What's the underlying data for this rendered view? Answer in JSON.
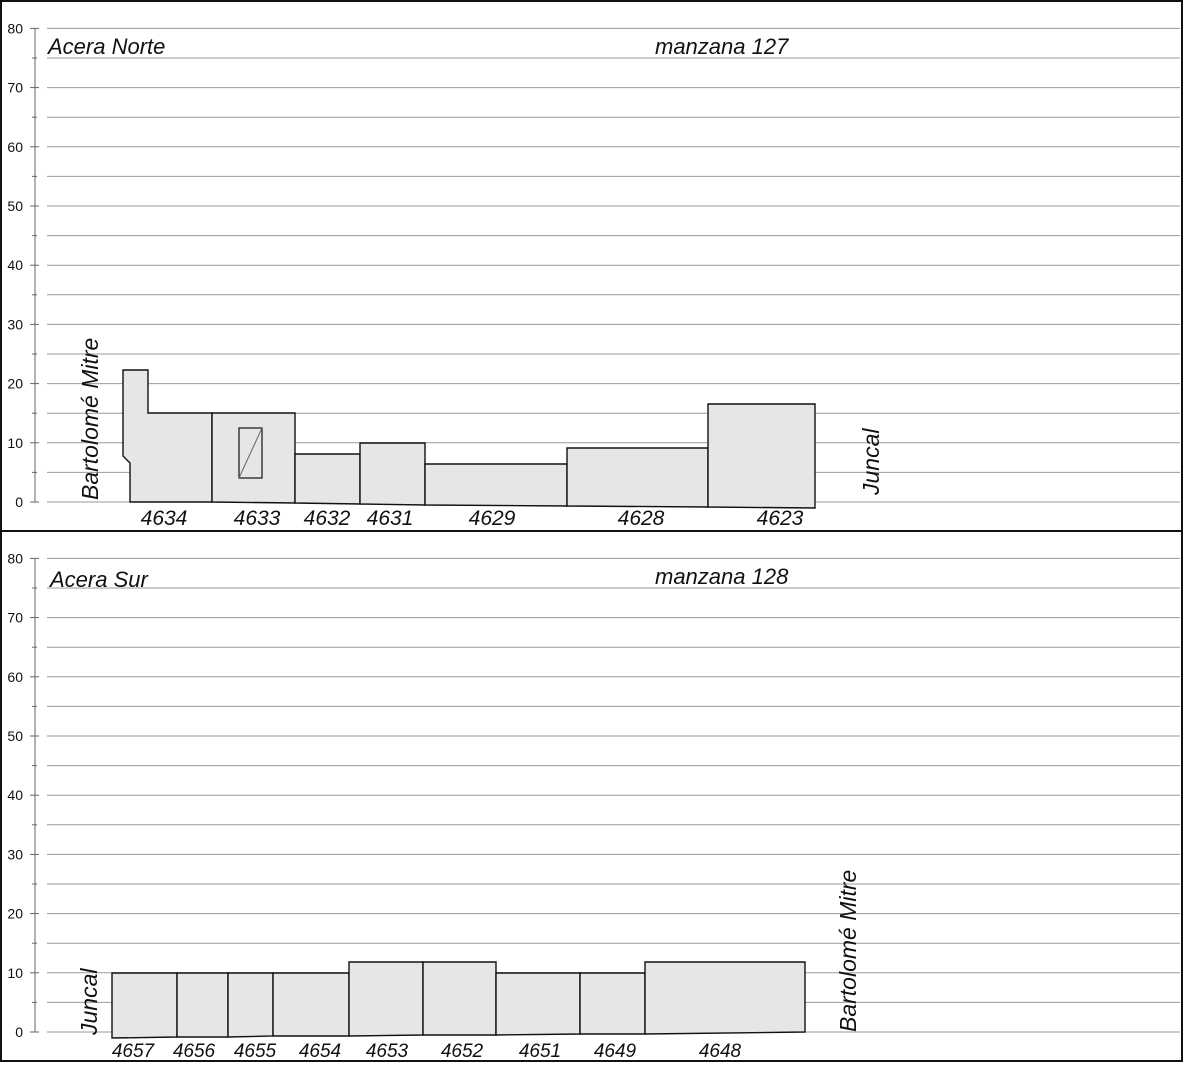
{
  "panels": [
    {
      "id": "north",
      "title": "Acera Norte",
      "block": "manzana 127",
      "left_street": "Bartolomé Mitre",
      "right_street": "Juncal",
      "y_ticks": [
        "0",
        "10",
        "20",
        "30",
        "40",
        "50",
        "60",
        "70",
        "80"
      ],
      "lots": [
        {
          "label": "4634",
          "height": 15
        },
        {
          "label": "4633",
          "height": 15
        },
        {
          "label": "4632",
          "height": 8
        },
        {
          "label": "4631",
          "height": 10
        },
        {
          "label": "4629",
          "height": 6.5
        },
        {
          "label": "4628",
          "height": 9
        },
        {
          "label": "4623",
          "height": 16.5
        }
      ]
    },
    {
      "id": "south",
      "title": "Acera Sur",
      "block": "manzana 128",
      "left_street": "Juncal",
      "right_street": "Bartolomé Mitre",
      "y_ticks": [
        "0",
        "10",
        "20",
        "30",
        "40",
        "50",
        "60",
        "70",
        "80"
      ],
      "lots": [
        {
          "label": "4657",
          "height": 10
        },
        {
          "label": "4656",
          "height": 10
        },
        {
          "label": "4655",
          "height": 10
        },
        {
          "label": "4654",
          "height": 10
        },
        {
          "label": "4653",
          "height": 12
        },
        {
          "label": "4652",
          "height": 12
        },
        {
          "label": "4651",
          "height": 10
        },
        {
          "label": "4649",
          "height": 10
        },
        {
          "label": "4648",
          "height": 12
        }
      ]
    }
  ],
  "colors": {
    "building_fill": "#e6e6e6",
    "grid": "#9a9a9a",
    "outline": "#111111"
  }
}
